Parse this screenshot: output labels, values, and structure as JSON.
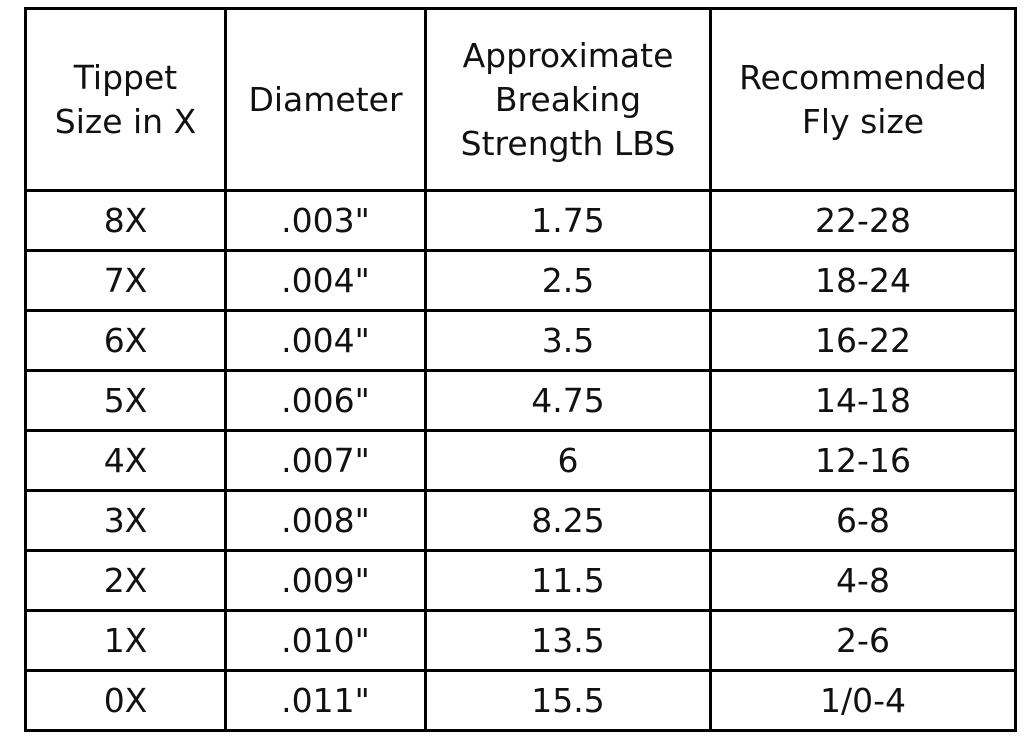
{
  "table": {
    "header": [
      [
        "Tippet",
        "Size in X"
      ],
      [
        "Diameter"
      ],
      [
        "Approximate",
        "Breaking",
        "Strength LBS"
      ],
      [
        "Recommended",
        "Fly size"
      ]
    ],
    "rows": [
      [
        "8X",
        ".003\"",
        "1.75",
        "22-28"
      ],
      [
        "7X",
        ".004\"",
        "2.5",
        "18-24"
      ],
      [
        "6X",
        ".004\"",
        "3.5",
        "16-22"
      ],
      [
        "5X",
        ".006\"",
        "4.75",
        "14-18"
      ],
      [
        "4X",
        ".007\"",
        "6",
        "12-16"
      ],
      [
        "3X",
        ".008\"",
        "8.25",
        "6-8"
      ],
      [
        "2X",
        ".009\"",
        "11.5",
        "4-8"
      ],
      [
        "1X",
        ".010\"",
        "13.5",
        "2-6"
      ],
      [
        "0X",
        ".011\"",
        "15.5",
        "1/0-4"
      ]
    ]
  }
}
